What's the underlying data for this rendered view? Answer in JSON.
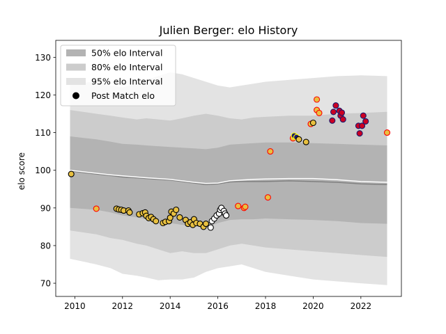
{
  "chart_data": {
    "type": "line",
    "title": "Julien Berger: elo History",
    "xlabel": "",
    "ylabel": "elo score",
    "xlim": [
      2009.2,
      2023.7
    ],
    "ylim": [
      66.5,
      134.5
    ],
    "x_ticks": [
      2010,
      2012,
      2014,
      2016,
      2018,
      2020,
      2022
    ],
    "y_ticks": [
      70,
      80,
      90,
      100,
      110,
      120,
      130
    ],
    "grid": false,
    "legend": {
      "placement": "top-left",
      "entries": [
        "50% elo Interval",
        "80% elo Interval",
        "95% elo Interval",
        "Post Match elo"
      ]
    },
    "colors": {
      "band50": "#b3b3b3",
      "band80": "#cccccc",
      "band95": "#e3e3e3",
      "mean_line": "#808080",
      "expected_line": "#ffffff",
      "marker_gold": "#e8c040",
      "marker_navy": "#1a1a6e",
      "marker_red": "#cc0022",
      "marker_white": "#ffffff",
      "edge_red": "#ff0000",
      "edge_yellow": "#ffff00",
      "edge_black": "#000000"
    },
    "bands": {
      "x": [
        2009.8,
        2010.9,
        2011.5,
        2012.0,
        2012.6,
        2013.0,
        2013.5,
        2014.0,
        2014.5,
        2015.0,
        2015.5,
        2016.0,
        2016.5,
        2017.0,
        2017.5,
        2018.0,
        2019.0,
        2020.0,
        2021.0,
        2022.0,
        2023.1
      ],
      "mean": [
        99.8,
        99.0,
        98.6,
        98.2,
        98.0,
        97.8,
        97.6,
        97.4,
        97.0,
        96.6,
        96.2,
        96.4,
        96.9,
        97.0,
        97.0,
        97.0,
        97.2,
        97.0,
        96.8,
        96.4,
        96.2
      ],
      "expected": [
        100.0,
        99.2,
        98.8,
        98.5,
        98.2,
        98.0,
        97.8,
        97.6,
        97.2,
        96.8,
        96.5,
        96.6,
        97.2,
        97.4,
        97.6,
        97.7,
        97.8,
        97.8,
        97.5,
        97.0,
        96.8
      ],
      "lo50": [
        90.0,
        89.5,
        88.8,
        88.0,
        87.5,
        87.0,
        86.5,
        86.0,
        85.5,
        85.2,
        84.8,
        86.0,
        86.8,
        87.0,
        87.0,
        87.2,
        87.0,
        86.8,
        86.5,
        86.0,
        85.8
      ],
      "hi50": [
        109.0,
        108.2,
        107.6,
        107.0,
        106.8,
        106.6,
        106.4,
        106.2,
        106.0,
        105.8,
        105.6,
        106.0,
        106.8,
        107.0,
        107.2,
        107.4,
        107.4,
        107.2,
        107.0,
        106.8,
        106.6
      ],
      "lo80": [
        84.0,
        83.0,
        82.0,
        81.5,
        80.5,
        80.0,
        79.0,
        78.0,
        78.5,
        78.0,
        78.0,
        79.0,
        80.0,
        80.5,
        80.0,
        79.5,
        79.0,
        78.5,
        78.0,
        77.5,
        77.0
      ],
      "hi80": [
        116.0,
        115.0,
        114.5,
        114.0,
        113.5,
        113.8,
        113.5,
        113.2,
        113.8,
        114.5,
        115.0,
        114.5,
        113.8,
        113.5,
        114.0,
        114.2,
        114.5,
        114.5,
        115.0,
        115.2,
        115.5
      ],
      "lo95": [
        76.5,
        75.0,
        74.0,
        72.5,
        72.0,
        71.5,
        70.8,
        71.0,
        71.0,
        71.5,
        73.0,
        74.0,
        74.5,
        75.0,
        74.0,
        73.0,
        72.0,
        71.0,
        70.5,
        70.0,
        69.5
      ],
      "hi95": [
        123.0,
        123.5,
        122.5,
        122.0,
        123.0,
        124.0,
        125.0,
        126.0,
        125.5,
        124.5,
        123.5,
        122.5,
        122.0,
        122.5,
        123.0,
        123.5,
        124.0,
        124.5,
        125.0,
        125.2,
        125.0
      ]
    },
    "series": [
      {
        "name": "Post Match elo",
        "points": [
          {
            "x": 2009.85,
            "y": 99.0,
            "fill": "gold",
            "edge": "black"
          },
          {
            "x": 2010.9,
            "y": 89.8,
            "fill": "gold",
            "edge": "red"
          },
          {
            "x": 2011.75,
            "y": 89.8,
            "fill": "gold",
            "edge": "black"
          },
          {
            "x": 2011.85,
            "y": 89.6,
            "fill": "gold",
            "edge": "black"
          },
          {
            "x": 2011.95,
            "y": 89.5,
            "fill": "gold",
            "edge": "black"
          },
          {
            "x": 2012.05,
            "y": 89.3,
            "fill": "gold",
            "edge": "black"
          },
          {
            "x": 2012.25,
            "y": 89.3,
            "fill": "gold",
            "edge": "black"
          },
          {
            "x": 2012.3,
            "y": 88.8,
            "fill": "gold",
            "edge": "black"
          },
          {
            "x": 2012.7,
            "y": 88.3,
            "fill": "gold",
            "edge": "black"
          },
          {
            "x": 2012.85,
            "y": 88.6,
            "fill": "gold",
            "edge": "black"
          },
          {
            "x": 2012.95,
            "y": 88.8,
            "fill": "gold",
            "edge": "black"
          },
          {
            "x": 2013.0,
            "y": 87.9,
            "fill": "gold",
            "edge": "black"
          },
          {
            "x": 2013.1,
            "y": 87.3,
            "fill": "gold",
            "edge": "black"
          },
          {
            "x": 2013.2,
            "y": 87.6,
            "fill": "gold",
            "edge": "black"
          },
          {
            "x": 2013.3,
            "y": 87.0,
            "fill": "gold",
            "edge": "black"
          },
          {
            "x": 2013.4,
            "y": 86.5,
            "fill": "gold",
            "edge": "black"
          },
          {
            "x": 2013.7,
            "y": 86.0,
            "fill": "gold",
            "edge": "black"
          },
          {
            "x": 2013.8,
            "y": 86.3,
            "fill": "gold",
            "edge": "black"
          },
          {
            "x": 2013.95,
            "y": 86.5,
            "fill": "gold",
            "edge": "black"
          },
          {
            "x": 2014.0,
            "y": 87.4,
            "fill": "gold",
            "edge": "black"
          },
          {
            "x": 2014.05,
            "y": 89.0,
            "fill": "gold",
            "edge": "black"
          },
          {
            "x": 2014.15,
            "y": 88.5,
            "fill": "gold",
            "edge": "black"
          },
          {
            "x": 2014.25,
            "y": 89.5,
            "fill": "gold",
            "edge": "black"
          },
          {
            "x": 2014.4,
            "y": 87.5,
            "fill": "gold",
            "edge": "black"
          },
          {
            "x": 2014.65,
            "y": 86.8,
            "fill": "gold",
            "edge": "black"
          },
          {
            "x": 2014.75,
            "y": 85.8,
            "fill": "gold",
            "edge": "black"
          },
          {
            "x": 2014.85,
            "y": 86.2,
            "fill": "gold",
            "edge": "black"
          },
          {
            "x": 2014.95,
            "y": 85.5,
            "fill": "gold",
            "edge": "black"
          },
          {
            "x": 2015.0,
            "y": 87.0,
            "fill": "gold",
            "edge": "black"
          },
          {
            "x": 2015.1,
            "y": 86.0,
            "fill": "gold",
            "edge": "black"
          },
          {
            "x": 2015.25,
            "y": 85.8,
            "fill": "gold",
            "edge": "black"
          },
          {
            "x": 2015.4,
            "y": 85.0,
            "fill": "gold",
            "edge": "black"
          },
          {
            "x": 2015.5,
            "y": 85.8,
            "fill": "gold",
            "edge": "black"
          },
          {
            "x": 2015.7,
            "y": 84.8,
            "fill": "white",
            "edge": "black"
          },
          {
            "x": 2015.75,
            "y": 86.5,
            "fill": "white",
            "edge": "black"
          },
          {
            "x": 2015.85,
            "y": 87.2,
            "fill": "white",
            "edge": "black"
          },
          {
            "x": 2015.95,
            "y": 88.0,
            "fill": "white",
            "edge": "black"
          },
          {
            "x": 2016.05,
            "y": 88.5,
            "fill": "white",
            "edge": "black"
          },
          {
            "x": 2016.1,
            "y": 89.5,
            "fill": "white",
            "edge": "black"
          },
          {
            "x": 2016.15,
            "y": 90.0,
            "fill": "white",
            "edge": "black"
          },
          {
            "x": 2016.25,
            "y": 89.2,
            "fill": "white",
            "edge": "black"
          },
          {
            "x": 2016.3,
            "y": 88.5,
            "fill": "white",
            "edge": "black"
          },
          {
            "x": 2016.35,
            "y": 88.0,
            "fill": "white",
            "edge": "black"
          },
          {
            "x": 2016.85,
            "y": 90.5,
            "fill": "gold",
            "edge": "red"
          },
          {
            "x": 2017.1,
            "y": 90.0,
            "fill": "gold",
            "edge": "red"
          },
          {
            "x": 2017.15,
            "y": 90.3,
            "fill": "gold",
            "edge": "red"
          },
          {
            "x": 2018.1,
            "y": 92.8,
            "fill": "gold",
            "edge": "red"
          },
          {
            "x": 2018.2,
            "y": 105.0,
            "fill": "gold",
            "edge": "red"
          },
          {
            "x": 2019.15,
            "y": 108.5,
            "fill": "gold",
            "edge": "red"
          },
          {
            "x": 2019.2,
            "y": 109.2,
            "fill": "navy",
            "edge": "yellow"
          },
          {
            "x": 2019.3,
            "y": 108.8,
            "fill": "navy",
            "edge": "yellow"
          },
          {
            "x": 2019.4,
            "y": 108.2,
            "fill": "gold",
            "edge": "black"
          },
          {
            "x": 2019.7,
            "y": 107.5,
            "fill": "gold",
            "edge": "black"
          },
          {
            "x": 2019.9,
            "y": 112.3,
            "fill": "gold",
            "edge": "red"
          },
          {
            "x": 2020.0,
            "y": 112.6,
            "fill": "gold",
            "edge": "black"
          },
          {
            "x": 2020.15,
            "y": 118.8,
            "fill": "gold",
            "edge": "red"
          },
          {
            "x": 2020.15,
            "y": 116.0,
            "fill": "gold",
            "edge": "red"
          },
          {
            "x": 2020.25,
            "y": 115.2,
            "fill": "gold",
            "edge": "red"
          },
          {
            "x": 2020.8,
            "y": 113.2,
            "fill": "red",
            "edge": "navy"
          },
          {
            "x": 2020.85,
            "y": 115.5,
            "fill": "red",
            "edge": "navy"
          },
          {
            "x": 2020.95,
            "y": 117.2,
            "fill": "red",
            "edge": "navy"
          },
          {
            "x": 2021.1,
            "y": 115.8,
            "fill": "red",
            "edge": "navy"
          },
          {
            "x": 2021.15,
            "y": 114.5,
            "fill": "red",
            "edge": "navy"
          },
          {
            "x": 2021.2,
            "y": 115.3,
            "fill": "red",
            "edge": "navy"
          },
          {
            "x": 2021.25,
            "y": 113.5,
            "fill": "red",
            "edge": "navy"
          },
          {
            "x": 2021.9,
            "y": 111.8,
            "fill": "red",
            "edge": "navy"
          },
          {
            "x": 2021.95,
            "y": 109.8,
            "fill": "red",
            "edge": "navy"
          },
          {
            "x": 2022.05,
            "y": 111.8,
            "fill": "red",
            "edge": "navy"
          },
          {
            "x": 2022.1,
            "y": 114.5,
            "fill": "red",
            "edge": "navy"
          },
          {
            "x": 2022.2,
            "y": 113.0,
            "fill": "red",
            "edge": "navy"
          },
          {
            "x": 2023.1,
            "y": 110.0,
            "fill": "gold",
            "edge": "red"
          }
        ]
      }
    ]
  }
}
